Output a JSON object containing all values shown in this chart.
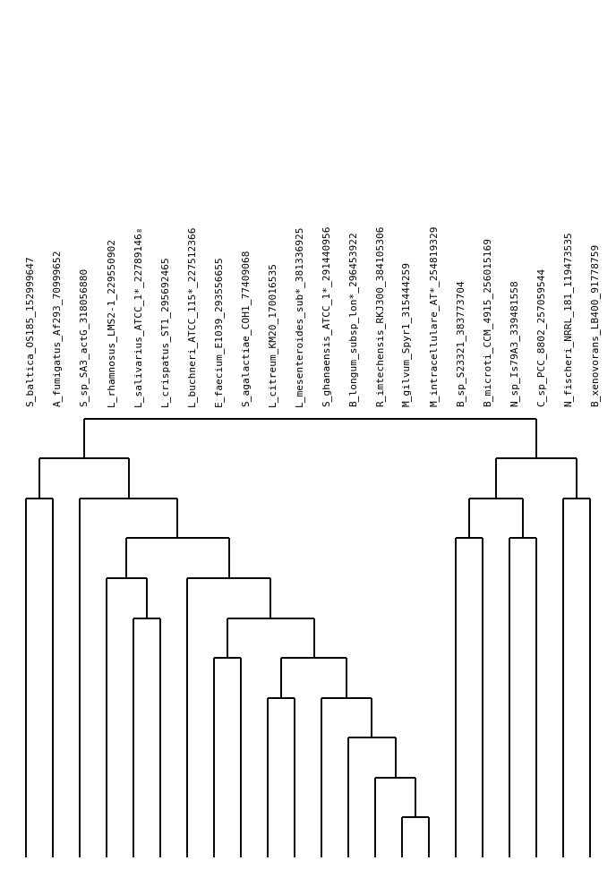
{
  "taxa_labels": [
    "S_baltica_OS185_152999647",
    "A_fumigatus_Af293_70999652",
    "S_sp_SA3_actG_318056880",
    "L_rhamnosus_LMS2-1_229550902",
    "L_salivarius_ATCC_1*_22789146₈",
    "L_crispatus_ST1_295692465",
    "L_buchneri_ATCC_115*_227512366",
    "E_faecium_E1039_293556655",
    "S_agalactiae_COH1_77409068",
    "L_citreum_KM20_170016535",
    "L_mesenteroides_sub*_381336925",
    "B_longum_subsp_lon*_296453922",
    "R_imtechensis_RKJ300_384105306",
    "M_gilvum_Spyr1_315444259",
    "M_intracellulare_AT*_254819329",
    "S_ghanaensis_ATCC_1*_291440956",
    "B_sp_S23321_383773704",
    "B_microti_CCM_4915_256015169",
    "N_sp_Is79A3_339481558",
    "C_sp_PCC_8802_257059544",
    "N_fischeri_NRRL_181_119473535",
    "B_xenovorans_LB400_91778759"
  ],
  "n_taxa": 22,
  "background_color": "#ffffff",
  "line_color": "#000000",
  "line_width": 1.4,
  "label_fontsize": 8.0,
  "figsize": [
    6.88,
    10.0
  ],
  "dpi": 100
}
